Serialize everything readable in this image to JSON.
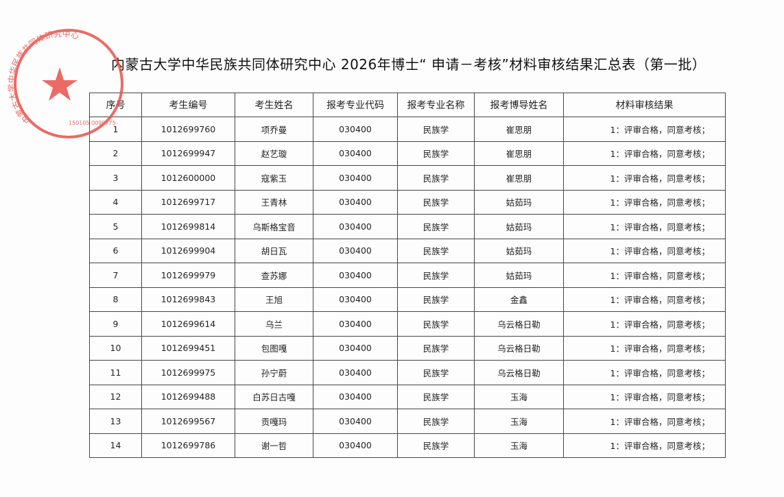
{
  "title": "内蒙古大学中华民族共同体研究中心 2026年博士“ 申请－考核”材料审核结果汇总表（第一批）",
  "stamp": {
    "text": "内蒙古大学中华民族共同体研究中心",
    "code": "150105 0090775",
    "color": "#e8524a"
  },
  "columns": [
    "序号",
    "考生编号",
    "考生姓名",
    "报考专业代码",
    "报考专业名称",
    "报考博导姓名",
    "材料审核结果"
  ],
  "rows": [
    [
      "1",
      "1012699760",
      "项乔曼",
      "030400",
      "民族学",
      "崔思朋",
      "1：评审合格，同意考核；"
    ],
    [
      "2",
      "1012699947",
      "赵艺璇",
      "030400",
      "民族学",
      "崔思朋",
      "1：评审合格，同意考核；"
    ],
    [
      "3",
      "1012600000",
      "寇紫玉",
      "030400",
      "民族学",
      "崔思朋",
      "1：评审合格，同意考核；"
    ],
    [
      "4",
      "1012699717",
      "王青林",
      "030400",
      "民族学",
      "姑茹玛",
      "1：评审合格，同意考核；"
    ],
    [
      "5",
      "1012699814",
      "乌斯格宝音",
      "030400",
      "民族学",
      "姑茹玛",
      "1：评审合格，同意考核；"
    ],
    [
      "6",
      "1012699904",
      "胡日瓦",
      "030400",
      "民族学",
      "姑茹玛",
      "1：评审合格，同意考核；"
    ],
    [
      "7",
      "1012699979",
      "查苏娜",
      "030400",
      "民族学",
      "姑茹玛",
      "1：评审合格，同意考核；"
    ],
    [
      "8",
      "1012699843",
      "王旭",
      "030400",
      "民族学",
      "金鑫",
      "1：评审合格，同意考核；"
    ],
    [
      "9",
      "1012699614",
      "乌兰",
      "030400",
      "民族学",
      "乌云格日勒",
      "1：评审合格，同意考核；"
    ],
    [
      "10",
      "1012699451",
      "包图嘎",
      "030400",
      "民族学",
      "乌云格日勒",
      "1：评审合格，同意考核；"
    ],
    [
      "11",
      "1012699975",
      "孙宁蔚",
      "030400",
      "民族学",
      "乌云格日勒",
      "1：评审合格，同意考核；"
    ],
    [
      "12",
      "1012699488",
      "白苏日古嘎",
      "030400",
      "民族学",
      "玉海",
      "1：评审合格，同意考核；"
    ],
    [
      "13",
      "1012699567",
      "贡嘎玛",
      "030400",
      "民族学",
      "玉海",
      "1：评审合格，同意考核；"
    ],
    [
      "14",
      "1012699786",
      "谢一哲",
      "030400",
      "民族学",
      "玉海",
      "1：评审合格，同意考核；"
    ]
  ]
}
